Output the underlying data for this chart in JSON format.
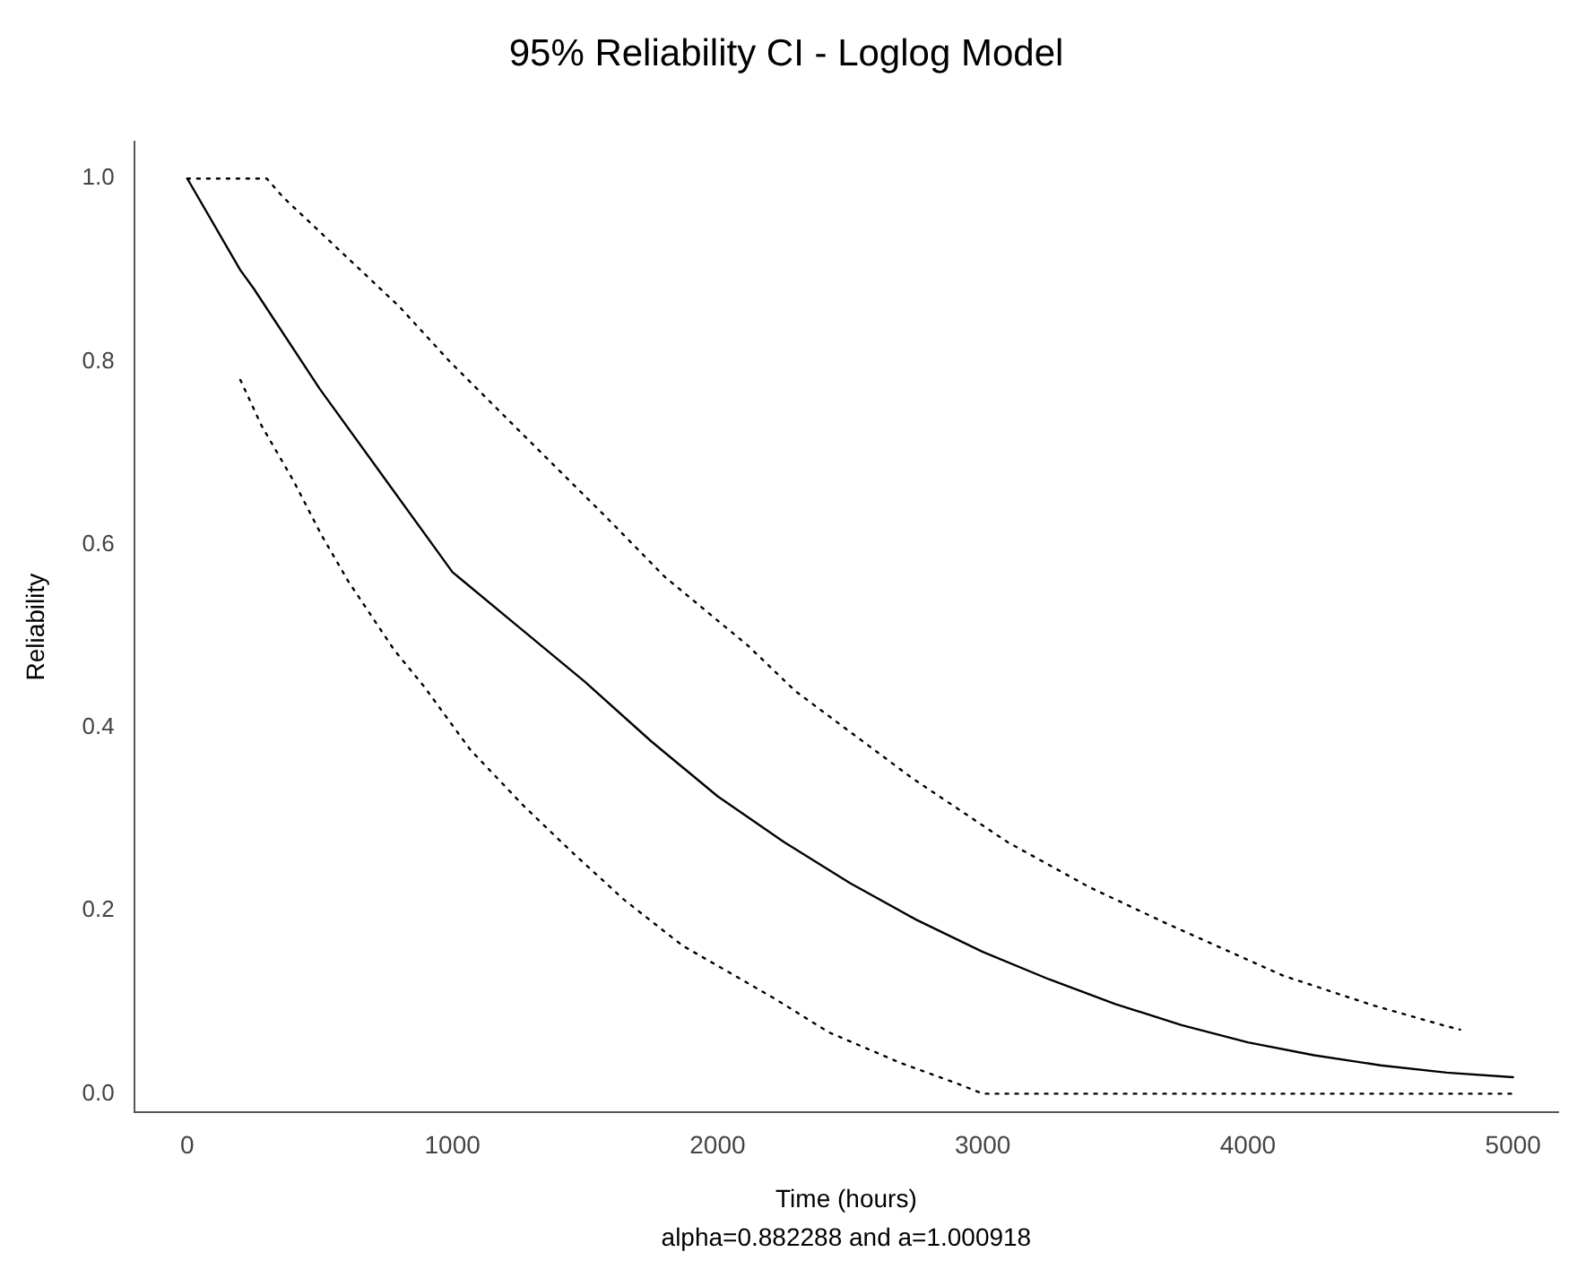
{
  "chart_data": {
    "type": "line",
    "title": "95% Reliability CI - Loglog Model",
    "xlabel": "Time (hours)",
    "ylabel": "Reliability",
    "annotations": [
      "alpha=0.882288 and a=1.000918"
    ],
    "xlim": [
      -200,
      5170
    ],
    "xticks": [
      0,
      1000,
      2000,
      3000,
      4000,
      5000
    ],
    "ylim": [
      -0.02,
      1.04
    ],
    "yticks": [
      {
        "value": 0,
        "label": "0.0"
      },
      0.2,
      0.4,
      0.6,
      0.8,
      {
        "value": 1,
        "label": "1.0"
      }
    ],
    "grid": false,
    "legend": false,
    "marker": "none",
    "series": [
      {
        "color": "#000000",
        "line_style": "solid",
        "x": [
          0,
          200,
          250,
          500,
          750,
          1000,
          1250,
          1500,
          1750,
          2000,
          2250,
          2500,
          2750,
          3000,
          3250,
          3500,
          3750,
          4000,
          4250,
          4500,
          4750,
          5000
        ],
        "values": [
          1.0,
          0.9,
          0.88,
          0.77,
          0.67,
          0.57,
          0.51,
          0.45,
          0.385,
          0.325,
          0.275,
          0.23,
          0.19,
          0.155,
          0.125,
          0.098,
          0.075,
          0.056,
          0.042,
          0.031,
          0.023,
          0.018
        ]
      },
      {
        "color": "#000000",
        "line_style": "dotted",
        "x": [
          0,
          300,
          360,
          800,
          990,
          1267,
          1580,
          1800,
          2113,
          2293,
          2733,
          3093,
          3400,
          3693,
          4133,
          4467,
          4733,
          4800
        ],
        "values": [
          1.0,
          1.0,
          0.98,
          0.86,
          0.8,
          0.72,
          0.63,
          0.565,
          0.49,
          0.44,
          0.345,
          0.275,
          0.226,
          0.186,
          0.129,
          0.097,
          0.075,
          0.07
        ]
      },
      {
        "color": "#000000",
        "line_style": "dotted",
        "x": [
          200,
          280,
          400,
          507,
          607,
          780,
          893,
          1067,
          1267,
          1447,
          1647,
          1867,
          2220,
          2420,
          2687,
          2913,
          3000,
          4000,
          5000
        ],
        "values": [
          0.78,
          0.73,
          0.67,
          0.61,
          0.56,
          0.485,
          0.445,
          0.376,
          0.315,
          0.265,
          0.212,
          0.162,
          0.103,
          0.067,
          0.034,
          0.01,
          0.0,
          0.0,
          0.0
        ]
      }
    ]
  }
}
